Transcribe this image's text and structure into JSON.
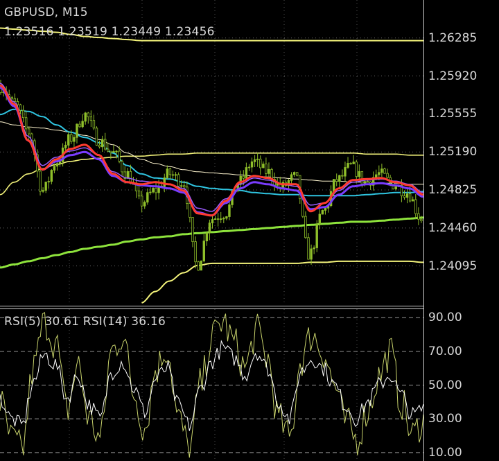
{
  "header": {
    "symbol_timeframe": "GBPUSD, M15",
    "ohlc": "1.23516 1.23519 1.23449 1.23456"
  },
  "rsi_panel": {
    "label": "RSI(5) 30.61 RSI(14) 36.16"
  },
  "colors": {
    "background": "#000000",
    "grid": "#8c8c8c",
    "candle_up": "#8fbf2a",
    "candle_down": "#8fbf2a",
    "ma_red": "#ff3b2f",
    "ma_violet": "#7a3cff",
    "ma_cyan": "#2fc4e0",
    "ma_white": "#fff6d0",
    "band_yellow": "#f2f27a",
    "ma_green": "#8ee33c",
    "rsi5": "#c9d46c",
    "rsi14": "#ffffff"
  },
  "chart_data": [
    {
      "type": "candlestick",
      "title": "",
      "price_axis_ticks": [
        "1.26285",
        "1.25920",
        "1.25555",
        "1.25190",
        "1.24825",
        "1.24460",
        "1.24095"
      ],
      "ylim": [
        1.2372,
        1.2665
      ],
      "grid": "dotted",
      "series": [
        {
          "name": "",
          "anchors": [
            1.2582,
            1.2565,
            1.2538,
            1.2482,
            1.251,
            1.2532,
            1.2555,
            1.253,
            1.2518,
            1.2498,
            1.247,
            1.2482,
            1.2498,
            1.249,
            1.241,
            1.2455,
            1.246,
            1.249,
            1.251,
            1.25,
            1.2485,
            1.2495,
            1.242,
            1.2462,
            1.2492,
            1.2505,
            1.249,
            1.2498,
            1.2488,
            1.248,
            1.2455
          ]
        },
        {
          "name": "",
          "anchors": [
            1.2583,
            1.2565,
            1.253,
            1.2502,
            1.2512,
            1.2522,
            1.2526,
            1.2516,
            1.2498,
            1.249,
            1.2488,
            1.249,
            1.2488,
            1.2482,
            1.246,
            1.2458,
            1.2472,
            1.249,
            1.2496,
            1.2494,
            1.2488,
            1.2488,
            1.2462,
            1.247,
            1.2484,
            1.2492,
            1.2493,
            1.2494,
            1.249,
            1.2487,
            1.2478
          ]
        },
        {
          "name": "",
          "anchors": [
            1.2585,
            1.2567,
            1.2534,
            1.2506,
            1.2514,
            1.252,
            1.2523,
            1.2516,
            1.25,
            1.2494,
            1.2491,
            1.249,
            1.2488,
            1.2484,
            1.2465,
            1.2462,
            1.2474,
            1.2488,
            1.2494,
            1.2492,
            1.2488,
            1.2486,
            1.2468,
            1.247,
            1.2482,
            1.249,
            1.2492,
            1.2493,
            1.2491,
            1.2488,
            1.248
          ]
        },
        {
          "name": "",
          "anchors": [
            1.2555,
            1.256,
            1.2558,
            1.2553,
            1.2545,
            1.2538,
            1.2533,
            1.2528,
            1.2518,
            1.2506,
            1.2498,
            1.2494,
            1.2493,
            1.249,
            1.2486,
            1.2484,
            1.2483,
            1.2482,
            1.248,
            1.2479,
            1.2478,
            1.2478,
            1.2477,
            1.2477,
            1.2477,
            1.2477,
            1.2478,
            1.2479,
            1.248,
            1.248,
            1.2481
          ]
        },
        {
          "name": "",
          "anchors": [
            1.2548,
            1.2545,
            1.2543,
            1.2542,
            1.254,
            1.2538,
            1.2535,
            1.2531,
            1.2526,
            1.2518,
            1.2512,
            1.2508,
            1.2505,
            1.2502,
            1.25,
            1.2499,
            1.2498,
            1.2497,
            1.2496,
            1.2495,
            1.2494,
            1.2493,
            1.2492,
            1.2491,
            1.2491,
            1.249,
            1.249,
            1.2489,
            1.2489,
            1.2488,
            1.2488
          ]
        },
        {
          "name": "",
          "anchors": [
            1.2638,
            1.2637,
            1.2636,
            1.2635,
            1.2634,
            1.2632,
            1.263,
            1.2629,
            1.2628,
            1.2627,
            1.2626,
            1.2626,
            1.2626,
            1.2626,
            1.2626,
            1.2626,
            1.2626,
            1.2626,
            1.2626,
            1.2626,
            1.2626,
            1.2626,
            1.2626,
            1.2626,
            1.2626,
            1.2626,
            1.2626,
            1.2626,
            1.2626,
            1.2626,
            1.2626
          ]
        },
        {
          "name": "",
          "anchors": [
            1.2478,
            1.249,
            1.2498,
            1.2503,
            1.2507,
            1.251,
            1.2512,
            1.2513,
            1.2514,
            1.2515,
            1.2515,
            1.2516,
            1.2517,
            1.2517,
            1.2518,
            1.2518,
            1.2518,
            1.2518,
            1.2518,
            1.2518,
            1.2518,
            1.2518,
            1.2518,
            1.2518,
            1.2518,
            1.2518,
            1.2517,
            1.2517,
            1.2517,
            1.2516,
            1.2516
          ]
        },
        {
          "name": "",
          "anchors": [
            null,
            null,
            null,
            null,
            null,
            null,
            null,
            null,
            null,
            null,
            1.2374,
            1.2385,
            1.2395,
            1.2403,
            1.241,
            1.2412,
            1.2412,
            1.2412,
            1.2412,
            1.2412,
            1.2412,
            1.2412,
            1.2413,
            1.2413,
            1.2414,
            1.2414,
            1.2414,
            1.2414,
            1.2414,
            1.2414,
            1.2413
          ]
        },
        {
          "name": "",
          "anchors": [
            1.2408,
            1.2411,
            1.2414,
            1.2417,
            1.242,
            1.2423,
            1.2426,
            1.2428,
            1.243,
            1.2433,
            1.2435,
            1.2437,
            1.2438,
            1.244,
            1.2441,
            1.2442,
            1.2443,
            1.2444,
            1.2445,
            1.2446,
            1.2447,
            1.2448,
            1.2449,
            1.245,
            1.2451,
            1.2452,
            1.2452,
            1.2453,
            1.2454,
            1.2455,
            1.2456
          ]
        }
      ]
    },
    {
      "type": "line",
      "title": "",
      "y_axis_ticks": [
        "90.00",
        "70.00",
        "50.00",
        "30.00",
        "10.00"
      ],
      "ylim": [
        5,
        95
      ],
      "levels": [
        90,
        70,
        50,
        30,
        10
      ],
      "series": [
        {
          "name": "RSI(5)",
          "last_value": 30.61,
          "anchors": [
            40,
            18,
            12,
            60,
            88,
            75,
            35,
            62,
            30,
            18,
            70,
            80,
            45,
            25,
            60,
            72,
            30,
            12,
            50,
            78,
            88,
            75,
            60,
            82,
            66,
            30,
            18,
            65,
            80,
            70,
            50,
            28,
            18,
            35,
            55,
            70,
            40,
            20,
            30
          ]
        },
        {
          "name": "RSI(14)",
          "last_value": 36.16,
          "anchors": [
            42,
            30,
            26,
            52,
            68,
            62,
            42,
            56,
            38,
            30,
            58,
            64,
            48,
            34,
            54,
            60,
            38,
            26,
            48,
            64,
            72,
            66,
            56,
            70,
            60,
            40,
            30,
            58,
            66,
            60,
            50,
            38,
            30,
            40,
            50,
            56,
            44,
            32,
            36
          ]
        }
      ]
    }
  ]
}
